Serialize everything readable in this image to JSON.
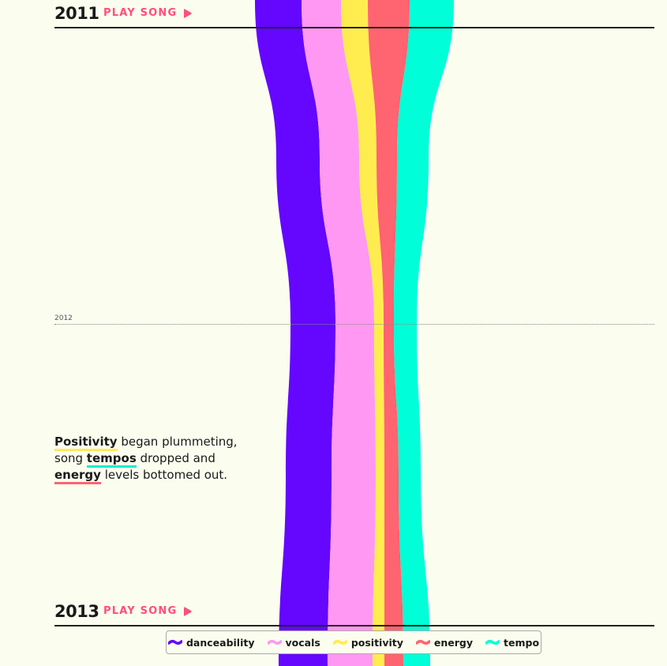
{
  "chart_data": {
    "type": "area",
    "title": "",
    "series": [
      {
        "name": "danceability",
        "color": "#6506ff"
      },
      {
        "name": "vocals",
        "color": "#ff98f2"
      },
      {
        "name": "positivity",
        "color": "#ffed4f"
      },
      {
        "name": "energy",
        "color": "#ff6470"
      },
      {
        "name": "tempo",
        "color": "#00ffd8"
      }
    ],
    "year_markers": [
      {
        "year": "2011",
        "action": "PLAY SONG"
      },
      {
        "year": "2012"
      },
      {
        "year": "2013",
        "action": "PLAY SONG"
      }
    ],
    "annotation": {
      "w1": "Positivity",
      "t1": " began plummeting, song ",
      "w2": "tempos",
      "t2": " dropped and ",
      "w3": "energy",
      "t3": " levels bottomed out."
    },
    "legend_placement": "bottom"
  }
}
